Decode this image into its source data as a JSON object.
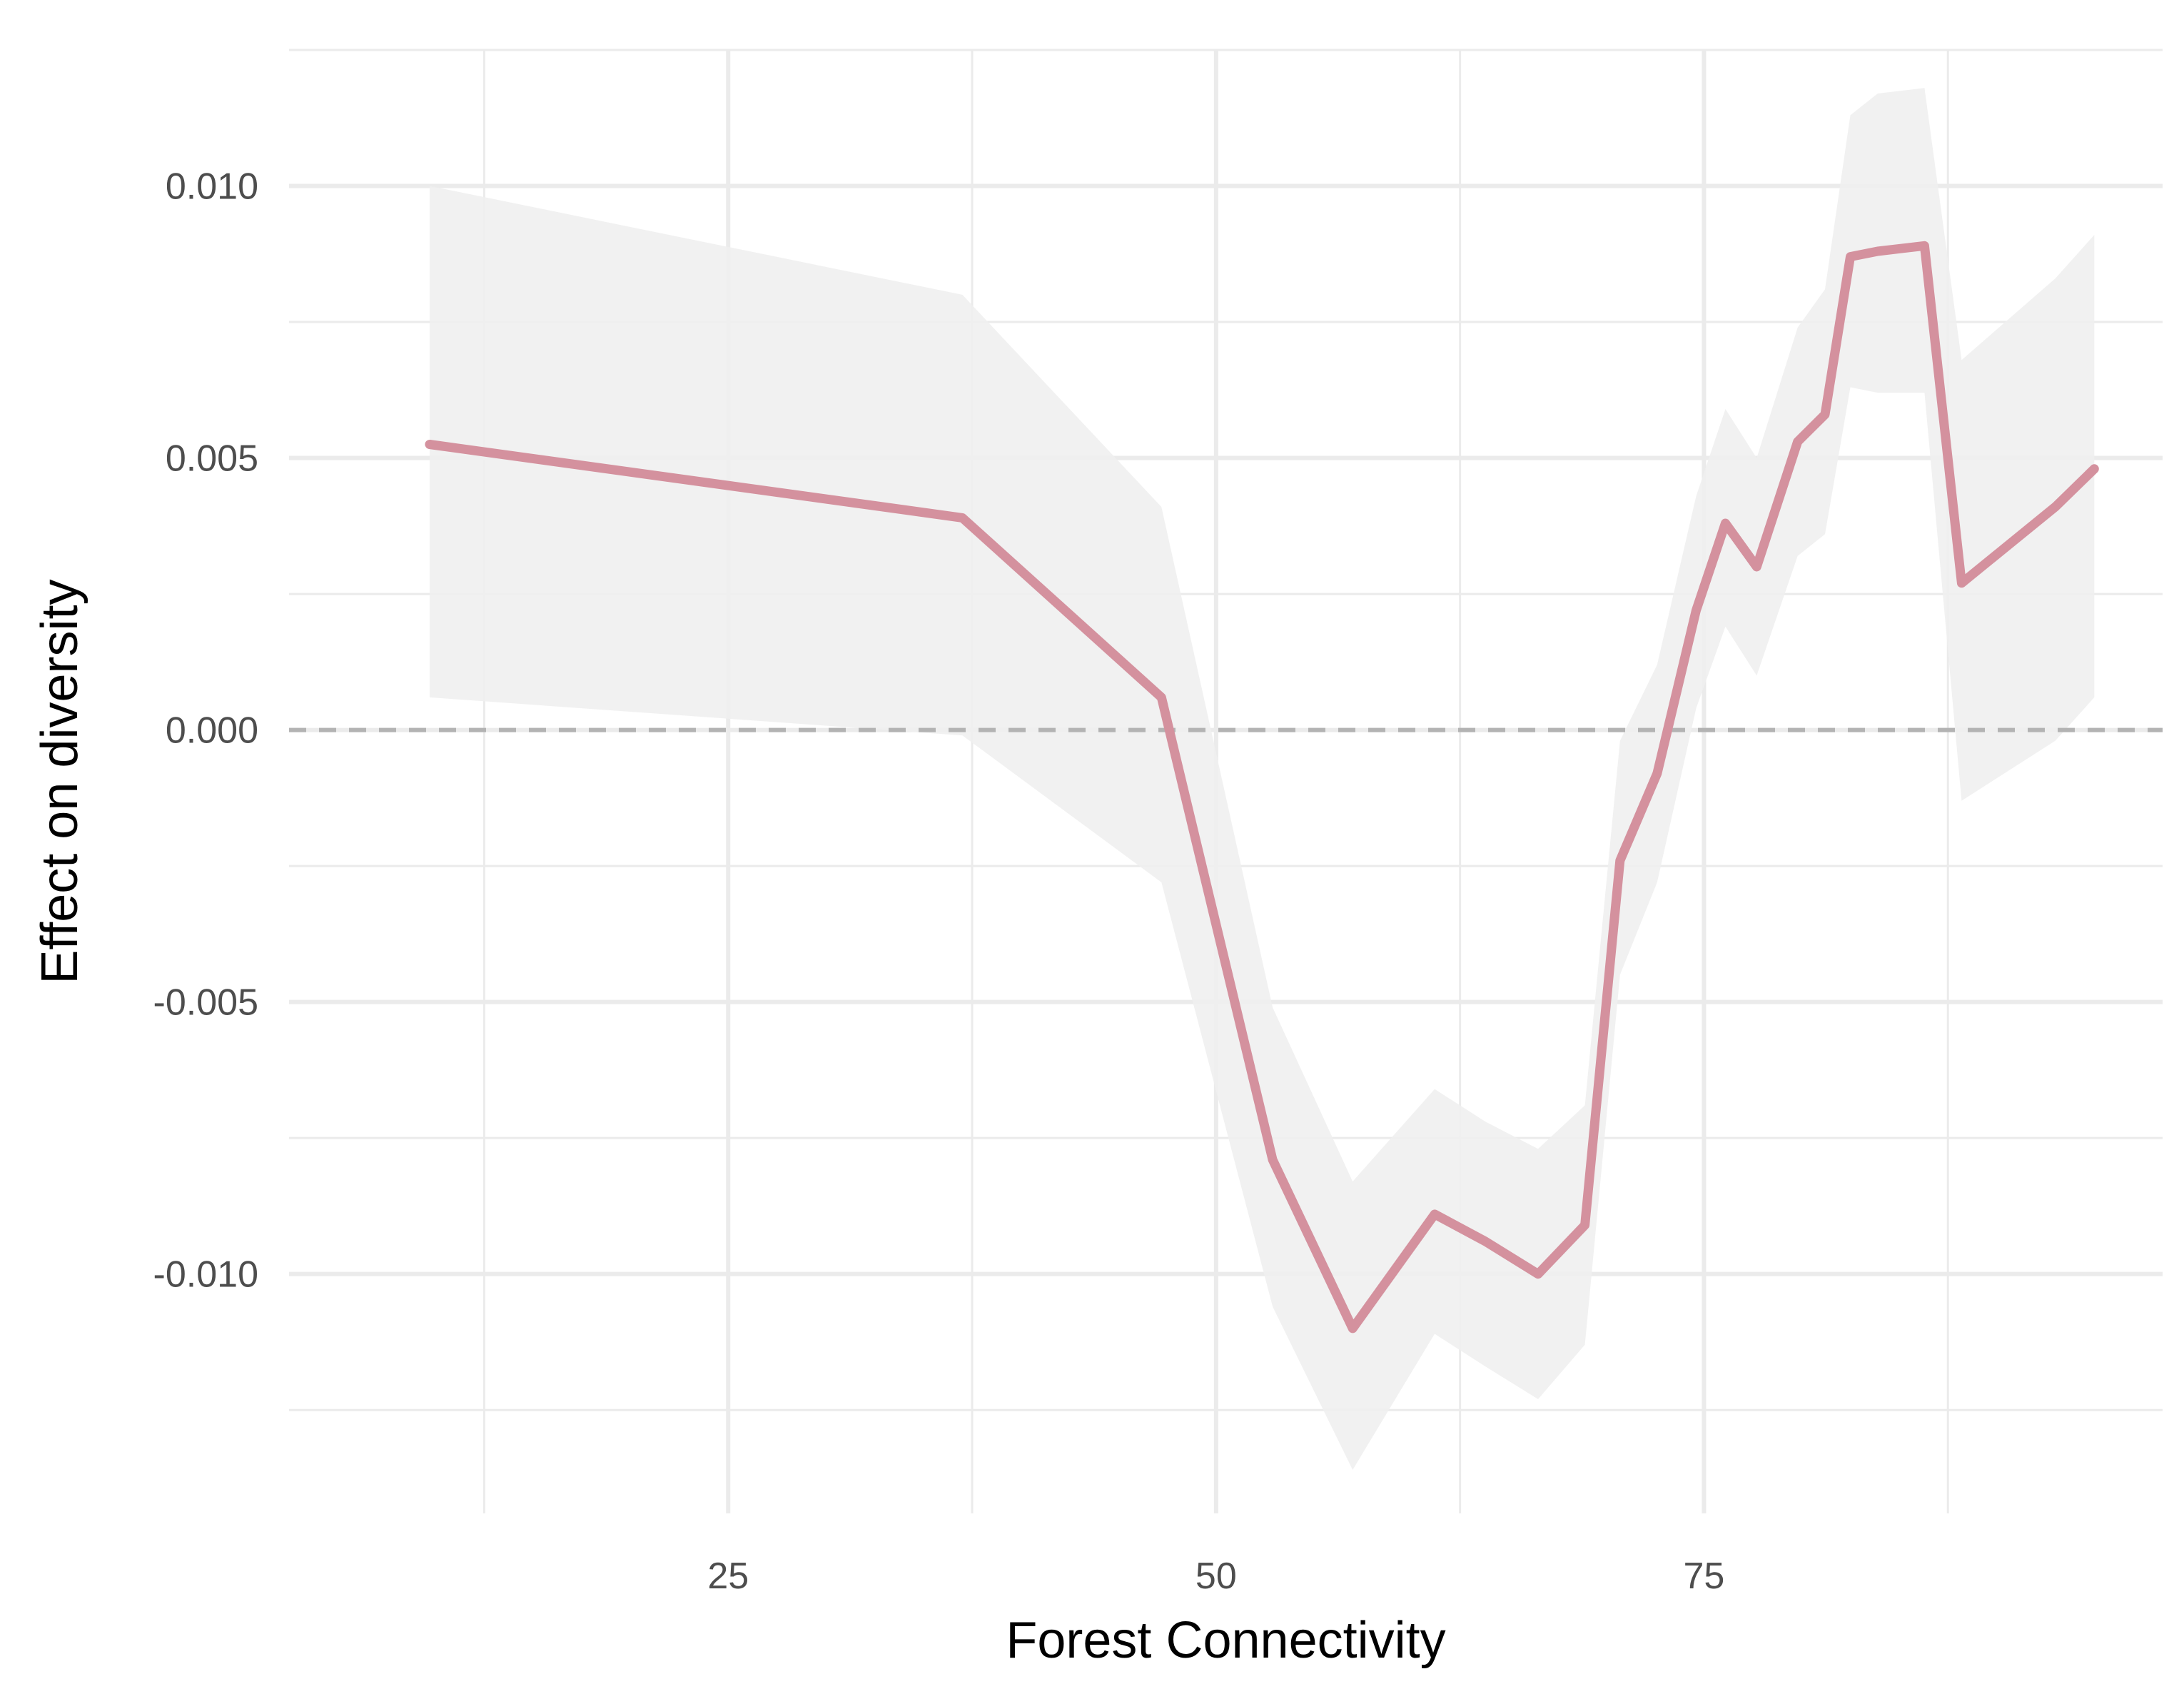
{
  "chart_data": {
    "type": "line",
    "xlabel": "Forest Connectivity",
    "ylabel": "Effect on diversity",
    "xlim": [
      2.5,
      98.5
    ],
    "ylim": [
      -0.0144,
      0.0125
    ],
    "x_ticks": [
      25,
      50,
      75
    ],
    "x_tick_labels": [
      "25",
      "50",
      "75"
    ],
    "x_minor_ticks": [
      12.5,
      37.5,
      62.5,
      87.5
    ],
    "y_ticks": [
      -0.01,
      -0.005,
      0,
      0.005,
      0.01
    ],
    "y_tick_labels": [
      "-0.010",
      "-0.005",
      "0.000",
      "0.005",
      "0.010"
    ],
    "y_minor_ticks": [
      -0.0125,
      -0.0075,
      -0.0025,
      0.0025,
      0.0075,
      0.0125
    ],
    "grid": true,
    "reference_line": {
      "y": 0,
      "style": "dashed"
    },
    "series": [
      {
        "x": [
          9.7,
          37.0,
          47.2,
          52.9,
          57.0,
          61.2,
          63.8,
          66.5,
          68.9,
          70.7,
          72.6,
          74.6,
          76.1,
          77.7,
          79.8,
          81.2,
          82.5,
          83.9,
          86.3,
          88.2,
          93.0,
          95.0
        ],
        "y": [
          0.00525,
          0.0039,
          0.0006,
          -0.0079,
          -0.011,
          -0.0089,
          -0.0094,
          -0.01,
          -0.0091,
          -0.0024,
          -0.0008,
          0.0022,
          0.0038,
          0.003,
          0.0053,
          0.0058,
          0.0087,
          0.0088,
          0.0089,
          0.0027,
          0.0041,
          0.0048
        ],
        "lower": [
          0.0006,
          -0.0001,
          -0.0028,
          -0.0106,
          -0.0136,
          -0.0111,
          -0.0117,
          -0.0123,
          -0.0113,
          -0.0045,
          -0.0028,
          0.0004,
          0.0019,
          0.001,
          0.0032,
          0.0036,
          0.0063,
          0.0062,
          0.0062,
          -0.0013,
          -0.0002,
          0.0006
        ],
        "upper": [
          0.01,
          0.008,
          0.0041,
          -0.0051,
          -0.0083,
          -0.0066,
          -0.0072,
          -0.0077,
          -0.0069,
          -0.0002,
          0.0012,
          0.0043,
          0.0059,
          0.005,
          0.0074,
          0.0081,
          0.0113,
          0.0117,
          0.0118,
          0.0068,
          0.0083,
          0.0091
        ],
        "color": "#d4919e"
      }
    ],
    "ribbon_color": "#efefef",
    "grid_color": "#ebebeb",
    "reference_color": "#b3b3b3"
  }
}
